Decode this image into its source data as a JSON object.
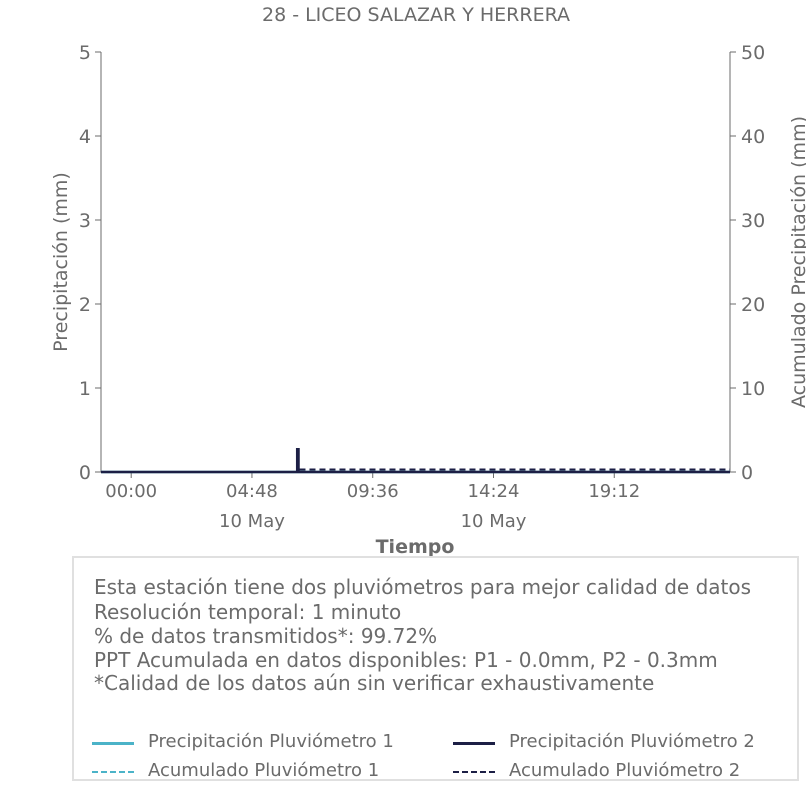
{
  "chart_data": {
    "type": "line",
    "title": "28 - LICEO SALAZAR Y HERRERA",
    "xlabel": "Tiempo",
    "ylabel": "Precipitación (mm)",
    "ylabel_right": "Acumulado Precipitación (mm)",
    "ylim": [
      0,
      5
    ],
    "ylim_right": [
      0,
      50
    ],
    "yticks": [
      "0",
      "1",
      "2",
      "3",
      "4",
      "5"
    ],
    "yticks_right": [
      "0",
      "10",
      "20",
      "30",
      "40",
      "50"
    ],
    "xlim_hours": [
      -1.2,
      23.8
    ],
    "xticks": [
      {
        "hour": 0,
        "label": "00:00",
        "sublabel": ""
      },
      {
        "hour": 4.8,
        "label": "04:48",
        "sublabel": "10 May"
      },
      {
        "hour": 9.6,
        "label": "09:36",
        "sublabel": ""
      },
      {
        "hour": 14.4,
        "label": "14:24",
        "sublabel": "10 May"
      },
      {
        "hour": 19.2,
        "label": "19:12",
        "sublabel": ""
      }
    ],
    "grid": false,
    "legend_position": "bottom",
    "series": [
      {
        "name": "Precipitación Pluviómetro 1",
        "axis": "left",
        "style": "solid",
        "color": "#4bb3c8",
        "x": [
          -1.2,
          23.8
        ],
        "y": [
          0,
          0
        ]
      },
      {
        "name": "Precipitación Pluviómetro 2",
        "axis": "left",
        "style": "solid",
        "color": "#1c1f45",
        "x": [
          -1.2,
          6.6,
          6.6,
          6.65,
          6.65,
          23.8
        ],
        "y": [
          0,
          0,
          0.27,
          0.27,
          0,
          0
        ]
      },
      {
        "name": "Acumulado Pluviómetro 1",
        "axis": "right",
        "style": "dashed",
        "color": "#4bb3c8",
        "x": [
          -1.2,
          23.8
        ],
        "y": [
          0,
          0
        ]
      },
      {
        "name": "Acumulado Pluviómetro 2",
        "axis": "right",
        "style": "dashed",
        "color": "#1c1f45",
        "x": [
          -1.2,
          6.6,
          6.65,
          23.8
        ],
        "y": [
          0,
          0,
          0.3,
          0.3
        ]
      }
    ]
  },
  "info": {
    "line1": "Esta estación tiene dos pluviómetros para mejor calidad de datos",
    "line2": "Resolución temporal: 1 minuto",
    "line3": "% de datos transmitidos*: 99.72%",
    "line4": "PPT Acumulada en datos disponibles: P1 - 0.0mm, P2 - 0.3mm",
    "line5": "*Calidad de los datos aún sin verificar exhaustivamente"
  },
  "legend": {
    "p1_precip": "Precipitación Pluviómetro 1",
    "p2_precip": "Precipitación Pluviómetro 2",
    "p1_acum": "Acumulado Pluviómetro 1",
    "p2_acum": "Acumulado Pluviómetro 2"
  },
  "colors": {
    "p1": "#4bb3c8",
    "p2": "#1c1f45",
    "text": "#6b6b6b",
    "axis": "#6b6b6b"
  }
}
